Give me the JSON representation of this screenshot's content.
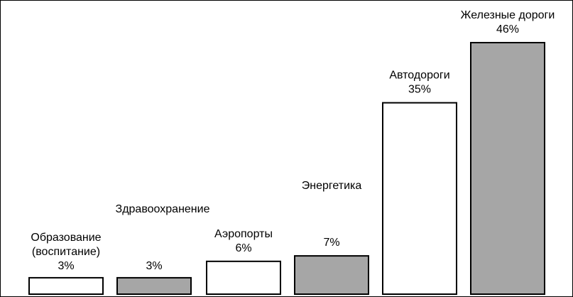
{
  "chart_data": {
    "type": "bar",
    "title": "",
    "xlabel": "",
    "ylabel": "",
    "ylim": [
      0,
      46
    ],
    "grid": false,
    "categories": [
      {
        "label_lines": [
          "Образование",
          "(воспитание)"
        ],
        "value_label": "3%"
      },
      {
        "label_lines": [
          "Здравоохранение"
        ],
        "value_label": "3%"
      },
      {
        "label_lines": [
          "Аэропорты"
        ],
        "value_label": "6%"
      },
      {
        "label_lines": [
          "Энергетика"
        ],
        "value_label": "7%"
      },
      {
        "label_lines": [
          "Автодороги"
        ],
        "value_label": "35%"
      },
      {
        "label_lines": [
          "Железные дороги"
        ],
        "value_label": "46%"
      }
    ],
    "values": [
      3,
      3,
      6,
      7,
      35,
      46
    ],
    "colors": {
      "white_bar": "#ffffff",
      "gray_bar": "#a6a6a6",
      "outline": "#000000"
    }
  }
}
